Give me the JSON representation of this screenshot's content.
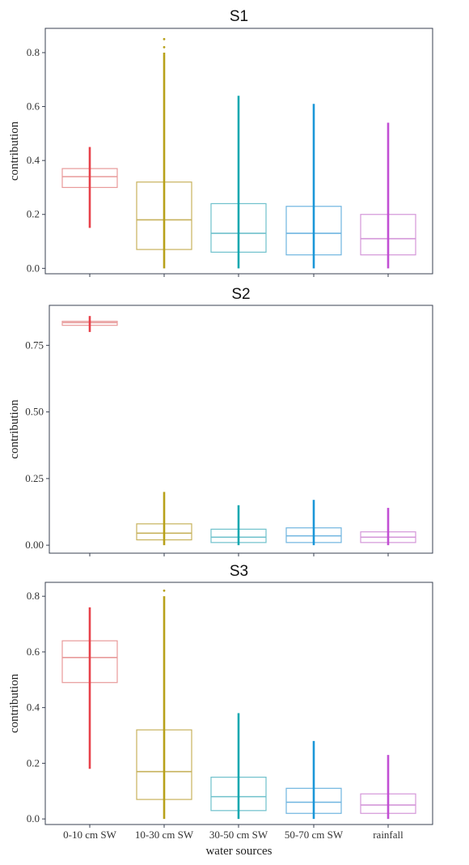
{
  "chart_data": [
    {
      "type": "box",
      "title": "S1",
      "ylabel": "contribution",
      "xlabel": "",
      "ylim": [
        -0.02,
        0.89
      ],
      "yticks": [
        0.0,
        0.2,
        0.4,
        0.6,
        0.8
      ],
      "ytick_labels": [
        "0.0",
        "0.2",
        "0.4",
        "0.6",
        "0.8"
      ],
      "categories": [
        "0-10 cm SW",
        "10-30 cm SW",
        "30-50 cm SW",
        "50-70 cm SW",
        "rainfall"
      ],
      "boxes": [
        {
          "q1": 0.3,
          "median": 0.34,
          "q3": 0.37,
          "min": 0.15,
          "max": 0.45
        },
        {
          "q1": 0.07,
          "median": 0.18,
          "q3": 0.32,
          "min": 0.0,
          "max": 0.8,
          "outliers": [
            0.82,
            0.85
          ]
        },
        {
          "q1": 0.06,
          "median": 0.13,
          "q3": 0.24,
          "min": 0.0,
          "max": 0.64
        },
        {
          "q1": 0.05,
          "median": 0.13,
          "q3": 0.23,
          "min": 0.0,
          "max": 0.61
        },
        {
          "q1": 0.05,
          "median": 0.11,
          "q3": 0.2,
          "min": 0.0,
          "max": 0.54
        }
      ]
    },
    {
      "type": "box",
      "title": "S2",
      "ylabel": "contribution",
      "xlabel": "",
      "ylim": [
        -0.03,
        0.9
      ],
      "yticks": [
        0.0,
        0.25,
        0.5,
        0.75
      ],
      "ytick_labels": [
        "0.00",
        "0.25",
        "0.50",
        "0.75"
      ],
      "categories": [
        "0-10 cm SW",
        "10-30 cm SW",
        "30-50 cm SW",
        "50-70 cm SW",
        "rainfall"
      ],
      "boxes": [
        {
          "q1": 0.825,
          "median": 0.835,
          "q3": 0.84,
          "min": 0.8,
          "max": 0.86
        },
        {
          "q1": 0.02,
          "median": 0.045,
          "q3": 0.08,
          "min": 0.0,
          "max": 0.2
        },
        {
          "q1": 0.01,
          "median": 0.03,
          "q3": 0.06,
          "min": 0.0,
          "max": 0.15
        },
        {
          "q1": 0.01,
          "median": 0.035,
          "q3": 0.065,
          "min": 0.0,
          "max": 0.17
        },
        {
          "q1": 0.01,
          "median": 0.03,
          "q3": 0.05,
          "min": 0.0,
          "max": 0.14
        }
      ]
    },
    {
      "type": "box",
      "title": "S3",
      "ylabel": "contribution",
      "xlabel": "water sources",
      "ylim": [
        -0.02,
        0.85
      ],
      "yticks": [
        0.0,
        0.2,
        0.4,
        0.6,
        0.8
      ],
      "ytick_labels": [
        "0.0",
        "0.2",
        "0.4",
        "0.6",
        "0.8"
      ],
      "categories": [
        "0-10 cm SW",
        "10-30 cm SW",
        "30-50 cm SW",
        "50-70 cm SW",
        "rainfall"
      ],
      "boxes": [
        {
          "q1": 0.49,
          "median": 0.58,
          "q3": 0.64,
          "min": 0.18,
          "max": 0.76
        },
        {
          "q1": 0.07,
          "median": 0.17,
          "q3": 0.32,
          "min": 0.0,
          "max": 0.8,
          "outliers": [
            0.82
          ]
        },
        {
          "q1": 0.03,
          "median": 0.08,
          "q3": 0.15,
          "min": 0.0,
          "max": 0.38
        },
        {
          "q1": 0.02,
          "median": 0.06,
          "q3": 0.11,
          "min": 0.0,
          "max": 0.28
        },
        {
          "q1": 0.02,
          "median": 0.05,
          "q3": 0.09,
          "min": 0.0,
          "max": 0.23
        }
      ]
    }
  ],
  "x_tick_labels": [
    "0-10 cm SW",
    "10-30 cm SW",
    "30-50 cm SW",
    "50-70 cm SW",
    "rainfall"
  ],
  "shared_xlabel": "water sources",
  "series_colors": {
    "box_stroke": [
      "#e89a9a",
      "#c7b25c",
      "#6fc1cc",
      "#6fb5e0",
      "#d497d9"
    ],
    "whisker": [
      "#e8414a",
      "#b8a11a",
      "#12a8b0",
      "#1b97d8",
      "#c24fd4"
    ],
    "frame": "#3a4150"
  },
  "grid": false
}
